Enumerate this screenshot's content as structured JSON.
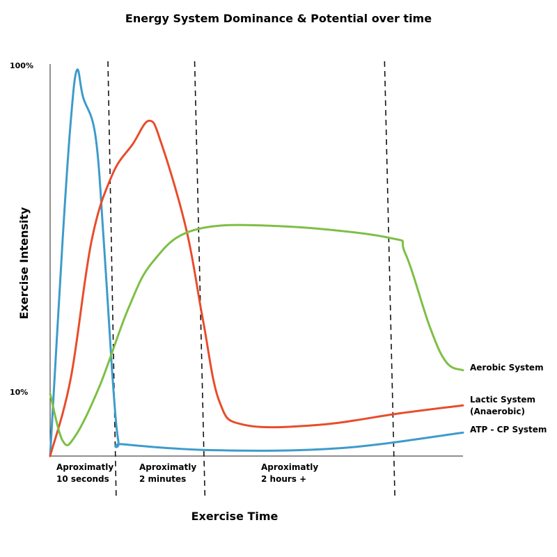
{
  "chart_data": {
    "type": "line",
    "title": "Energy System Dominance & Potential over time",
    "xlabel": "Exercise Time",
    "ylabel": "Exercise Intensity",
    "ylim": [
      0,
      100
    ],
    "y_ticks": [
      {
        "value": 100,
        "label": "100%"
      },
      {
        "value": 10,
        "label": "10%"
      }
    ],
    "grid": false,
    "phases": [
      {
        "lines": [
          "Aproximatly",
          "10 seconds"
        ]
      },
      {
        "lines": [
          "Aproximatly",
          "2 minutes"
        ]
      },
      {
        "lines": [
          "Aproximatly",
          "2 hours +"
        ]
      }
    ],
    "series": [
      {
        "name": "ATP - CP System",
        "color": "#3d9bcb",
        "points": [
          [
            0,
            0
          ],
          [
            3,
            55
          ],
          [
            5,
            86
          ],
          [
            6.5,
            99
          ],
          [
            8,
            92
          ],
          [
            11,
            82
          ],
          [
            13,
            55
          ],
          [
            15,
            22
          ],
          [
            16.5,
            4
          ],
          [
            18,
            3
          ],
          [
            40,
            1.5
          ],
          [
            70,
            2
          ],
          [
            100,
            6
          ]
        ]
      },
      {
        "name": "Lactic  System",
        "name_line2": "(Anaerobic)",
        "color": "#e84c2b",
        "points": [
          [
            0,
            0
          ],
          [
            5,
            20
          ],
          [
            10,
            55
          ],
          [
            15,
            72
          ],
          [
            20,
            80
          ],
          [
            24,
            86
          ],
          [
            27,
            80
          ],
          [
            33,
            58
          ],
          [
            37,
            35
          ],
          [
            41,
            14
          ],
          [
            47,
            8
          ],
          [
            65,
            8
          ],
          [
            85,
            11
          ],
          [
            100,
            13
          ]
        ]
      },
      {
        "name": "Aerobic System",
        "color": "#7dbf45",
        "points": [
          [
            0,
            16
          ],
          [
            3,
            4
          ],
          [
            6,
            5
          ],
          [
            12,
            18
          ],
          [
            19,
            38
          ],
          [
            25,
            50
          ],
          [
            35,
            58
          ],
          [
            55,
            59
          ],
          [
            82,
            56
          ],
          [
            86,
            52
          ],
          [
            92,
            33
          ],
          [
            96,
            24
          ],
          [
            100,
            22
          ]
        ]
      }
    ],
    "dividers": [
      {
        "x_top": 14,
        "x_bottom": 16
      },
      {
        "x_top": 35,
        "x_bottom": 37.5
      },
      {
        "x_top": 81,
        "x_bottom": 83.5
      }
    ]
  }
}
